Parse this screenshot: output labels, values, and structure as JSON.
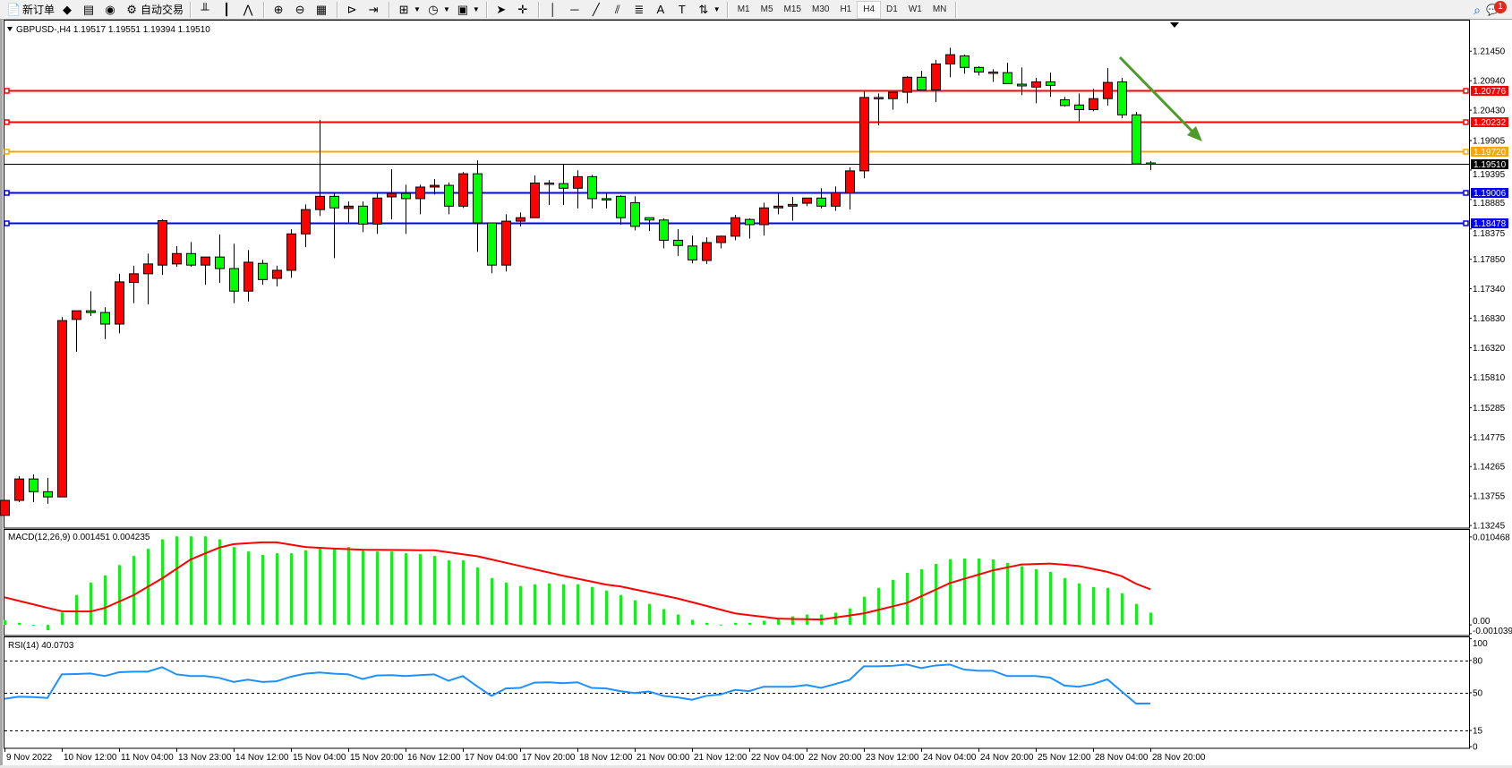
{
  "toolbar": {
    "items": [
      {
        "icon": "new-order-icon",
        "glyph": "📄",
        "label": "新订单"
      },
      {
        "icon": "market-watch-icon",
        "glyph": "◆"
      },
      {
        "icon": "data-window-icon",
        "glyph": "▤"
      },
      {
        "icon": "signals-icon",
        "glyph": "◉"
      },
      {
        "icon": "auto-trading-icon",
        "glyph": "⚙",
        "label": "自动交易"
      },
      {
        "sep": true
      },
      {
        "icon": "bar-chart-icon",
        "glyph": "╨"
      },
      {
        "icon": "candlestick-icon",
        "glyph": "┃"
      },
      {
        "icon": "line-chart-icon",
        "glyph": "⋀"
      },
      {
        "sep": true
      },
      {
        "icon": "zoom-in-icon",
        "glyph": "⊕"
      },
      {
        "icon": "zoom-out-icon",
        "glyph": "⊖"
      },
      {
        "icon": "tile-windows-icon",
        "glyph": "▦"
      },
      {
        "sep": true
      },
      {
        "icon": "chart-shift-icon",
        "glyph": "⊳"
      },
      {
        "icon": "auto-scroll-icon",
        "glyph": "⇥"
      },
      {
        "sep": true
      },
      {
        "icon": "indicators-icon",
        "glyph": "⊞",
        "dropdown": true
      },
      {
        "icon": "periods-icon",
        "glyph": "◷",
        "dropdown": true
      },
      {
        "icon": "templates-icon",
        "glyph": "▣",
        "dropdown": true
      },
      {
        "sep": true
      },
      {
        "icon": "cursor-icon",
        "glyph": "➤"
      },
      {
        "icon": "crosshair-icon",
        "glyph": "✛"
      },
      {
        "sep": true
      },
      {
        "icon": "vertical-line-icon",
        "glyph": "│"
      },
      {
        "icon": "horizontal-line-icon",
        "glyph": "─"
      },
      {
        "icon": "trendline-icon",
        "glyph": "╱"
      },
      {
        "icon": "equidistant-channel-icon",
        "glyph": "⫽"
      },
      {
        "icon": "fibonacci-icon",
        "glyph": "≣"
      },
      {
        "icon": "text-icon",
        "glyph": "A"
      },
      {
        "icon": "text-label-icon",
        "glyph": "T"
      },
      {
        "icon": "arrows-icon",
        "glyph": "⇅",
        "dropdown": true
      },
      {
        "sep": true
      }
    ],
    "timeframes": [
      "M1",
      "M5",
      "M15",
      "M30",
      "H1",
      "H4",
      "D1",
      "W1",
      "MN"
    ],
    "active_timeframe": "H4",
    "search_icon": "search-icon",
    "notifications_icon": "notifications-icon",
    "notification_count": "1"
  },
  "chart": {
    "symbol_header": "GBPUSD-,H4  1.19517 1.19551 1.19394 1.19510",
    "bull_color": "#ff0000",
    "bear_color": "#00ff00",
    "price_axis_ticks": [
      "1.21450",
      "1.20940",
      "1.20430",
      "1.19905",
      "1.19395",
      "1.18885",
      "1.18375",
      "1.17850",
      "1.17340",
      "1.16830",
      "1.16320",
      "1.15810",
      "1.15285",
      "1.14775",
      "1.14265",
      "1.13755",
      "1.13245"
    ],
    "ylim": [
      1.132,
      1.2198
    ],
    "levels": [
      {
        "price": 1.20776,
        "label": "1.20776",
        "color": "#ff0000"
      },
      {
        "price": 1.20232,
        "label": "1.20232",
        "color": "#ff0000"
      },
      {
        "price": 1.1972,
        "label": "1.19720",
        "color": "#ffa500"
      },
      {
        "price": 1.1951,
        "label": "1.19510",
        "color": "#000000",
        "kind": "bid"
      },
      {
        "price": 1.19006,
        "label": "1.19006",
        "color": "#0000ff"
      },
      {
        "price": 1.18478,
        "label": "1.18478",
        "color": "#0000ff"
      }
    ],
    "arrow_color": "#4e9a2a",
    "time_labels": [
      "9 Nov 2022",
      "10 Nov 12:00",
      "11 Nov 04:00",
      "13 Nov 23:00",
      "14 Nov 12:00",
      "15 Nov 04:00",
      "15 Nov 20:00",
      "16 Nov 12:00",
      "17 Nov 04:00",
      "17 Nov 20:00",
      "18 Nov 12:00",
      "21 Nov 00:00",
      "21 Nov 12:00",
      "22 Nov 04:00",
      "22 Nov 20:00",
      "23 Nov 12:00",
      "24 Nov 04:00",
      "24 Nov 20:00",
      "25 Nov 12:00",
      "28 Nov 04:00",
      "28 Nov 20:00"
    ],
    "ohlc": [
      [
        1.1342,
        1.1369,
        1.1342,
        1.1368
      ],
      [
        1.1368,
        1.141,
        1.1365,
        1.1405
      ],
      [
        1.1405,
        1.1413,
        1.1365,
        1.1383
      ],
      [
        1.1383,
        1.1407,
        1.1362,
        1.1374
      ],
      [
        1.1374,
        1.1685,
        1.1374,
        1.1679
      ],
      [
        1.1681,
        1.1696,
        1.1625,
        1.1696
      ],
      [
        1.1696,
        1.173,
        1.1687,
        1.1693
      ],
      [
        1.1693,
        1.1702,
        1.1647,
        1.1673
      ],
      [
        1.1673,
        1.176,
        1.1657,
        1.1746
      ],
      [
        1.1745,
        1.1774,
        1.1709,
        1.176
      ],
      [
        1.176,
        1.1795,
        1.1707,
        1.1777
      ],
      [
        1.1775,
        1.1854,
        1.1758,
        1.1852
      ],
      [
        1.1777,
        1.1808,
        1.1772,
        1.1795
      ],
      [
        1.1795,
        1.1815,
        1.1772,
        1.1775
      ],
      [
        1.1775,
        1.1789,
        1.1741,
        1.1789
      ],
      [
        1.1789,
        1.1828,
        1.1744,
        1.1769
      ],
      [
        1.1769,
        1.1812,
        1.1709,
        1.173
      ],
      [
        1.173,
        1.1801,
        1.1712,
        1.178
      ],
      [
        1.1778,
        1.1784,
        1.1741,
        1.175
      ],
      [
        1.1752,
        1.1774,
        1.1738,
        1.1766
      ],
      [
        1.1766,
        1.1837,
        1.1753,
        1.1829
      ],
      [
        1.1829,
        1.188,
        1.1806,
        1.1871
      ],
      [
        1.1871,
        1.2026,
        1.186,
        1.1894
      ],
      [
        1.1894,
        1.1899,
        1.1787,
        1.1874
      ],
      [
        1.1873,
        1.1885,
        1.1849,
        1.1877
      ],
      [
        1.1877,
        1.1885,
        1.1832,
        1.1846
      ],
      [
        1.1846,
        1.1899,
        1.1829,
        1.1891
      ],
      [
        1.1893,
        1.1941,
        1.1854,
        1.1899
      ],
      [
        1.1899,
        1.1914,
        1.1829,
        1.189
      ],
      [
        1.189,
        1.1914,
        1.1863,
        1.191
      ],
      [
        1.191,
        1.1924,
        1.1897,
        1.1913
      ],
      [
        1.1913,
        1.1918,
        1.1863,
        1.1877
      ],
      [
        1.1877,
        1.1936,
        1.1874,
        1.1933
      ],
      [
        1.1933,
        1.1956,
        1.1798,
        1.1848
      ],
      [
        1.1848,
        1.1848,
        1.1761,
        1.1775
      ],
      [
        1.1775,
        1.1863,
        1.1764,
        1.1851
      ],
      [
        1.1851,
        1.1866,
        1.1842,
        1.1857
      ],
      [
        1.1857,
        1.193,
        1.1857,
        1.1917
      ],
      [
        1.1917,
        1.1922,
        1.1879,
        1.1916
      ],
      [
        1.1916,
        1.195,
        1.1879,
        1.1908
      ],
      [
        1.1908,
        1.1939,
        1.1873,
        1.1928
      ],
      [
        1.1928,
        1.1931,
        1.1873,
        1.189
      ],
      [
        1.189,
        1.1899,
        1.1873,
        1.1889
      ],
      [
        1.1894,
        1.1896,
        1.1845,
        1.1857
      ],
      [
        1.1883,
        1.1894,
        1.1835,
        1.1842
      ],
      [
        1.1857,
        1.1857,
        1.1834,
        1.1853
      ],
      [
        1.1853,
        1.1856,
        1.1804,
        1.1818
      ],
      [
        1.1818,
        1.1837,
        1.1791,
        1.1809
      ],
      [
        1.1808,
        1.1826,
        1.1778,
        1.1784
      ],
      [
        1.1783,
        1.1823,
        1.1777,
        1.1814
      ],
      [
        1.1814,
        1.1826,
        1.1804,
        1.1825
      ],
      [
        1.1825,
        1.1862,
        1.1818,
        1.1857
      ],
      [
        1.1854,
        1.1856,
        1.1821,
        1.1845
      ],
      [
        1.1845,
        1.1883,
        1.1826,
        1.1874
      ],
      [
        1.1874,
        1.1899,
        1.1863,
        1.1877
      ],
      [
        1.1877,
        1.1893,
        1.1852,
        1.188
      ],
      [
        1.1882,
        1.1891,
        1.1877,
        1.1891
      ],
      [
        1.1891,
        1.1908,
        1.1873,
        1.1877
      ],
      [
        1.1877,
        1.1911,
        1.1869,
        1.19
      ],
      [
        1.19,
        1.1944,
        1.1871,
        1.1938
      ],
      [
        1.1938,
        1.2075,
        1.1925,
        1.2065
      ],
      [
        1.2065,
        1.2072,
        1.2017,
        1.2063
      ],
      [
        1.2063,
        1.2074,
        1.2044,
        1.2074
      ],
      [
        1.2074,
        1.2102,
        1.2055,
        1.21
      ],
      [
        1.21,
        1.2111,
        1.2078,
        1.2078
      ],
      [
        1.2078,
        1.213,
        1.2057,
        1.2123
      ],
      [
        1.2123,
        1.2151,
        1.21,
        1.2139
      ],
      [
        1.2137,
        1.2139,
        1.2106,
        1.2117
      ],
      [
        1.2117,
        1.2119,
        1.2103,
        1.2109
      ],
      [
        1.2109,
        1.2114,
        1.2092,
        1.2108
      ],
      [
        1.2108,
        1.2125,
        1.2089,
        1.2089
      ],
      [
        1.2088,
        1.2117,
        1.2069,
        1.2085
      ],
      [
        1.2083,
        1.2099,
        1.2055,
        1.2092
      ],
      [
        1.2092,
        1.2108,
        1.2066,
        1.2086
      ],
      [
        1.2061,
        1.2066,
        1.2049,
        1.2051
      ],
      [
        1.2052,
        1.2072,
        1.2024,
        1.2044
      ],
      [
        1.2044,
        1.208,
        1.2041,
        1.2063
      ],
      [
        1.2063,
        1.2116,
        1.2051,
        1.2091
      ],
      [
        1.2092,
        1.2099,
        1.2029,
        1.2035
      ],
      [
        1.2035,
        1.204,
        1.1949,
        1.195
      ],
      [
        1.19517,
        1.19551,
        1.19394,
        1.1951
      ]
    ]
  },
  "macd": {
    "label": "MACD(12,26,9) 0.001451 0.004235",
    "axis_labels": [
      "0.010468",
      "0.00",
      "-0.001039"
    ],
    "axis_values": [
      0.010468,
      0,
      -0.001039
    ],
    "ylim": [
      -0.00127,
      0.01131
    ],
    "hist_color": "#00ff00",
    "signal_color": "#ff0000",
    "histogram": [
      0.00056,
      0.00025,
      -7e-05,
      -0.00063,
      0.00148,
      0.00356,
      0.00504,
      0.00589,
      0.00712,
      0.00821,
      0.00906,
      0.01019,
      0.01054,
      0.01054,
      0.01054,
      0.01019,
      0.00927,
      0.00874,
      0.00832,
      0.00853,
      0.00853,
      0.00888,
      0.00913,
      0.00913,
      0.00927,
      0.00888,
      0.00874,
      0.00874,
      0.00853,
      0.00842,
      0.00821,
      0.00768,
      0.00768,
      0.00684,
      0.00557,
      0.00504,
      0.00462,
      0.00483,
      0.00494,
      0.00483,
      0.00483,
      0.00451,
      0.00409,
      0.00356,
      0.00293,
      0.0025,
      0.00187,
      0.00123,
      0.0006,
      0.00025,
      4e-05,
      0.00025,
      0.00025,
      0.00049,
      0.00081,
      0.00102,
      0.00123,
      0.00123,
      0.00145,
      0.00197,
      0.00335,
      0.00441,
      0.00536,
      0.0062,
      0.00663,
      0.00726,
      0.00783,
      0.0079,
      0.0079,
      0.00779,
      0.00737,
      0.00698,
      0.00663,
      0.00631,
      0.00557,
      0.00494,
      0.00451,
      0.00441,
      0.00377,
      0.0025,
      0.001451
    ],
    "signal": [
      0.00328,
      0.00286,
      0.00245,
      0.00203,
      0.00162,
      0.0016,
      0.00159,
      0.00201,
      0.00277,
      0.00353,
      0.00453,
      0.00553,
      0.00666,
      0.00779,
      0.0085,
      0.0092,
      0.00962,
      0.00973,
      0.00983,
      0.00983,
      0.00955,
      0.00927,
      0.00918,
      0.00909,
      0.00902,
      0.00895,
      0.00894,
      0.00892,
      0.00891,
      0.00889,
      0.00888,
      0.00865,
      0.00841,
      0.00818,
      0.00779,
      0.0074,
      0.00701,
      0.00662,
      0.00624,
      0.00585,
      0.0055,
      0.00515,
      0.00479,
      0.00458,
      0.00422,
      0.00386,
      0.0035,
      0.00314,
      0.0027,
      0.00226,
      0.00181,
      0.00137,
      0.00116,
      0.00095,
      0.00074,
      0.0007,
      0.00067,
      0.00063,
      0.00088,
      0.00112,
      0.00137,
      0.00178,
      0.0022,
      0.00261,
      0.0034,
      0.00418,
      0.00497,
      0.00548,
      0.00598,
      0.00649,
      0.00684,
      0.00719,
      0.00725,
      0.0073,
      0.00716,
      0.00701,
      0.00666,
      0.00631,
      0.0058,
      0.0049,
      0.004235
    ]
  },
  "rsi": {
    "label": "RSI(14) 40.0703",
    "axis_labels": [
      "100",
      "80",
      "50",
      "15",
      "0"
    ],
    "axis_values": [
      100,
      80,
      50,
      15,
      0
    ],
    "levels": [
      80,
      50,
      15
    ],
    "ylim": [
      -1.5,
      101.4
    ],
    "color": "#1e90ff",
    "values": [
      44.4,
      46.3,
      46.0,
      45.2,
      67.1,
      67.4,
      67.9,
      65.5,
      69.0,
      69.6,
      69.6,
      73.7,
      67.1,
      65.5,
      65.5,
      63.8,
      60.0,
      62.2,
      60.0,
      60.6,
      64.9,
      67.7,
      68.8,
      67.7,
      67.1,
      62.7,
      66.0,
      66.3,
      65.5,
      66.3,
      67.1,
      61.1,
      65.5,
      55.9,
      47.1,
      54.0,
      54.5,
      59.4,
      59.7,
      58.9,
      59.7,
      54.5,
      54.0,
      51.5,
      49.8,
      51.2,
      47.1,
      45.7,
      43.5,
      47.1,
      48.5,
      52.6,
      51.5,
      55.6,
      55.6,
      55.6,
      57.2,
      54.5,
      58.1,
      61.9,
      74.5,
      74.5,
      75.0,
      76.2,
      72.9,
      75.3,
      76.2,
      71.5,
      70.4,
      70.4,
      65.5,
      65.5,
      65.5,
      64.1,
      56.7,
      55.6,
      58.1,
      62.5,
      51.2,
      40.0,
      40.0703
    ]
  }
}
